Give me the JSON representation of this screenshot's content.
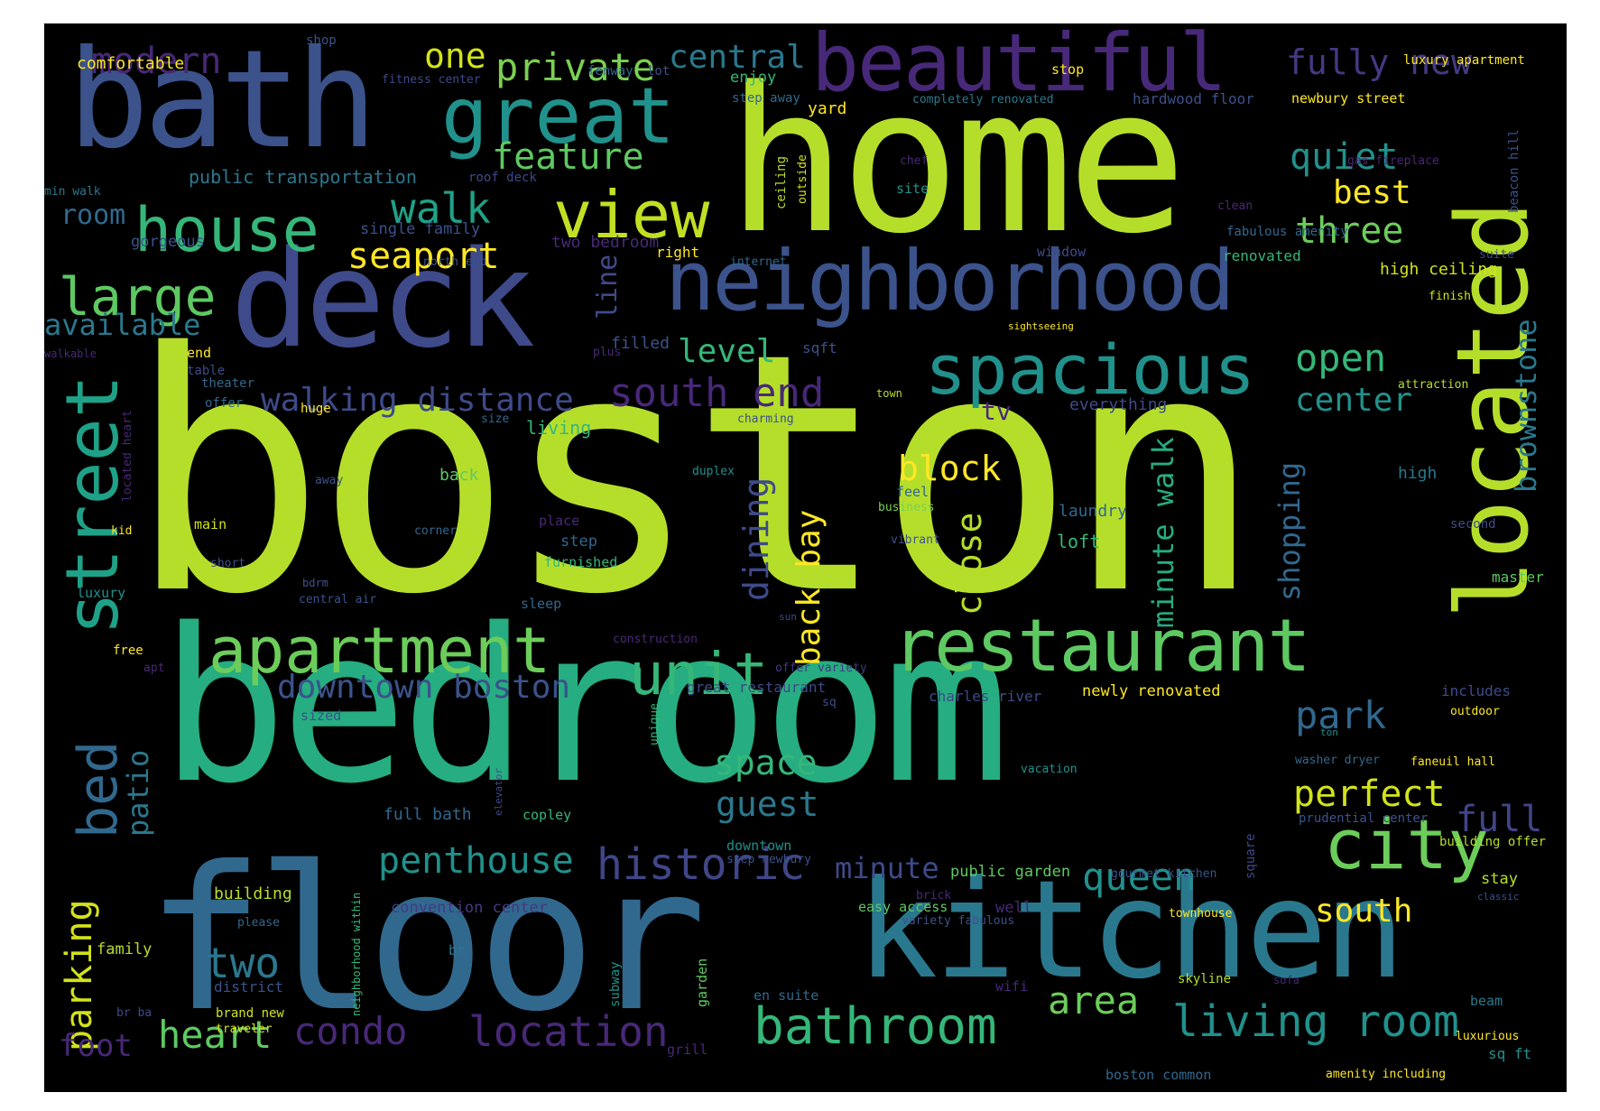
{
  "palette": {
    "lime": "#b5de2b",
    "green": "#5ec962",
    "teal": "#21918c",
    "aqua": "#1fa187",
    "blue": "#3b528b",
    "steel": "#31688e",
    "indigo": "#443983",
    "purple": "#482878",
    "yellow": "#fde725",
    "mint": "#35b779"
  },
  "words": [
    {
      "text": "boston",
      "color": "#b5de2b"
    },
    {
      "text": "bedroom",
      "color": "#26ad81"
    },
    {
      "text": "home",
      "color": "#b5de2b"
    },
    {
      "text": "floor",
      "color": "#31688e"
    },
    {
      "text": "kitchen",
      "color": "#2a788e"
    },
    {
      "text": "bath",
      "color": "#3b528b"
    },
    {
      "text": "deck",
      "color": "#3e4a89"
    },
    {
      "text": "located",
      "color": "#b5de2b"
    },
    {
      "text": "beautiful",
      "color": "#482878"
    },
    {
      "text": "neighborhood",
      "color": "#3b528b"
    },
    {
      "text": "great",
      "color": "#21918c"
    },
    {
      "text": "restaurant",
      "color": "#5ec962"
    },
    {
      "text": "street",
      "color": "#1fa187"
    },
    {
      "text": "spacious",
      "color": "#21918c"
    },
    {
      "text": "apartment",
      "color": "#6ccd5a"
    },
    {
      "text": "view",
      "color": "#c2df23"
    },
    {
      "text": "house",
      "color": "#35b779"
    },
    {
      "text": "unit",
      "color": "#35b779"
    },
    {
      "text": "city",
      "color": "#6ccd5a"
    },
    {
      "text": "bathroom",
      "color": "#35b779"
    },
    {
      "text": "large",
      "color": "#5ec962"
    },
    {
      "text": "bed",
      "color": "#31688e"
    },
    {
      "text": "living room",
      "color": "#21918c"
    },
    {
      "text": "historic",
      "color": "#404688"
    },
    {
      "text": "penthouse",
      "color": "#21918c"
    },
    {
      "text": "condo",
      "color": "#482878"
    },
    {
      "text": "location",
      "color": "#482878"
    },
    {
      "text": "two",
      "color": "#2a788e"
    },
    {
      "text": "heart",
      "color": "#5ec962"
    },
    {
      "text": "queen",
      "color": "#21918c"
    },
    {
      "text": "area",
      "color": "#6ccd5a"
    },
    {
      "text": "south end",
      "color": "#482878"
    },
    {
      "text": "walking distance",
      "color": "#3e4a89"
    },
    {
      "text": "downtown boston",
      "color": "#3b528b"
    },
    {
      "text": "seaport",
      "color": "#fde725"
    },
    {
      "text": "walk",
      "color": "#1fa187"
    },
    {
      "text": "feature",
      "color": "#5ec962"
    },
    {
      "text": "private",
      "color": "#7ad151"
    },
    {
      "text": "central",
      "color": "#2a788e"
    },
    {
      "text": "modern",
      "color": "#482878"
    },
    {
      "text": "one",
      "color": "#d2e21b"
    },
    {
      "text": "fully new",
      "color": "#443983"
    },
    {
      "text": "quiet",
      "color": "#21918c"
    },
    {
      "text": "best",
      "color": "#fde725"
    },
    {
      "text": "three",
      "color": "#6ccd5a"
    },
    {
      "text": "open",
      "color": "#35b779"
    },
    {
      "text": "center",
      "color": "#21918c"
    },
    {
      "text": "park",
      "color": "#31688e"
    },
    {
      "text": "perfect",
      "color": "#d2e21b"
    },
    {
      "text": "full",
      "color": "#414487"
    },
    {
      "text": "south",
      "color": "#fde725"
    },
    {
      "text": "space",
      "color": "#35b779"
    },
    {
      "text": "guest",
      "color": "#2a788e"
    },
    {
      "text": "minute",
      "color": "#3e4a89"
    },
    {
      "text": "block",
      "color": "#fde725"
    },
    {
      "text": "level",
      "color": "#35b779"
    },
    {
      "text": "room",
      "color": "#31688e"
    },
    {
      "text": "available",
      "color": "#2a788e"
    },
    {
      "text": "parking",
      "color": "#d2e21b"
    },
    {
      "text": "patio",
      "color": "#2a788e"
    },
    {
      "text": "foot",
      "color": "#482878"
    },
    {
      "text": "line",
      "color": "#3e4a89"
    },
    {
      "text": "dining",
      "color": "#3e4a89"
    },
    {
      "text": "back bay",
      "color": "#fde725"
    },
    {
      "text": "close",
      "color": "#b5de2b"
    },
    {
      "text": "minute walk",
      "color": "#26ad81"
    },
    {
      "text": "shopping",
      "color": "#31688e"
    },
    {
      "text": "brownstone",
      "color": "#2a788e"
    },
    {
      "text": "tv",
      "color": "#482878"
    },
    {
      "text": "public transportation",
      "color": "#2a788e"
    },
    {
      "text": "comfortable",
      "color": "#fde725"
    },
    {
      "text": "gorgeous",
      "color": "#3b528b"
    },
    {
      "text": "single family",
      "color": "#3b528b"
    },
    {
      "text": "two bedroom",
      "color": "#482878"
    },
    {
      "text": "shop",
      "color": "#3b528b"
    },
    {
      "text": "fitness center",
      "color": "#3e4a89"
    },
    {
      "text": "fenway",
      "color": "#31688e"
    },
    {
      "text": "lot",
      "color": "#3b528b"
    },
    {
      "text": "enjoy",
      "color": "#35b779"
    },
    {
      "text": "step away",
      "color": "#31688e"
    },
    {
      "text": "yard",
      "color": "#fde725"
    },
    {
      "text": "completely renovated",
      "color": "#2a788e"
    },
    {
      "text": "stop",
      "color": "#fde725"
    },
    {
      "text": "hardwood floor",
      "color": "#3b528b"
    },
    {
      "text": "newbury street",
      "color": "#fde725"
    },
    {
      "text": "luxury apartment",
      "color": "#fde725"
    },
    {
      "text": "roof deck",
      "color": "#3e4a89"
    },
    {
      "text": "min walk",
      "color": "#2a788e"
    },
    {
      "text": "chef",
      "color": "#482878"
    },
    {
      "text": "site",
      "color": "#21918c"
    },
    {
      "text": "ceiling",
      "color": "#b5de2b"
    },
    {
      "text": "outside",
      "color": "#d2e21b"
    },
    {
      "text": "gas fireplace",
      "color": "#482878"
    },
    {
      "text": "beacon hill",
      "color": "#3b528b"
    },
    {
      "text": "fabulous amenity",
      "color": "#31688e"
    },
    {
      "text": "clean",
      "color": "#482878"
    },
    {
      "text": "right",
      "color": "#fde725"
    },
    {
      "text": "internet",
      "color": "#31688e"
    },
    {
      "text": "north end",
      "color": "#3b528b"
    },
    {
      "text": "window",
      "color": "#3e4a89"
    },
    {
      "text": "renovated",
      "color": "#35b779"
    },
    {
      "text": "high ceiling",
      "color": "#d2e21b"
    },
    {
      "text": "suite",
      "color": "#3e4a89"
    },
    {
      "text": "finish",
      "color": "#d2e21b"
    },
    {
      "text": "sightseeing",
      "color": "#fde725"
    },
    {
      "text": "walkable",
      "color": "#482878"
    },
    {
      "text": "end",
      "color": "#fde725"
    },
    {
      "text": "table",
      "color": "#3e4a89"
    },
    {
      "text": "theater",
      "color": "#31688e"
    },
    {
      "text": "offer",
      "color": "#31688e"
    },
    {
      "text": "huge",
      "color": "#fde725"
    },
    {
      "text": "located heart",
      "color": "#482878"
    },
    {
      "text": "size",
      "color": "#31688e"
    },
    {
      "text": "living",
      "color": "#35b779"
    },
    {
      "text": "plus",
      "color": "#482878"
    },
    {
      "text": "filled",
      "color": "#3b528b"
    },
    {
      "text": "sqft",
      "color": "#3b528b"
    },
    {
      "text": "town",
      "color": "#b5de2b"
    },
    {
      "text": "charming",
      "color": "#3b528b"
    },
    {
      "text": "everything",
      "color": "#3e4a89"
    },
    {
      "text": "attraction",
      "color": "#b5de2b"
    },
    {
      "text": "high",
      "color": "#2a788e"
    },
    {
      "text": "away",
      "color": "#3b528b"
    },
    {
      "text": "back",
      "color": "#5ec962"
    },
    {
      "text": "duplex",
      "color": "#21918c"
    },
    {
      "text": "feel",
      "color": "#31688e"
    },
    {
      "text": "business",
      "color": "#7ad151"
    },
    {
      "text": "laundry",
      "color": "#31688e"
    },
    {
      "text": "main",
      "color": "#d2e21b"
    },
    {
      "text": "kid",
      "color": "#fde725"
    },
    {
      "text": "corner",
      "color": "#31688e"
    },
    {
      "text": "place",
      "color": "#482878"
    },
    {
      "text": "step",
      "color": "#31688e"
    },
    {
      "text": "furnished",
      "color": "#35b779"
    },
    {
      "text": "vibrant",
      "color": "#3b528b"
    },
    {
      "text": "loft",
      "color": "#35b779"
    },
    {
      "text": "second",
      "color": "#3e4a89"
    },
    {
      "text": "short",
      "color": "#3b528b"
    },
    {
      "text": "luxury",
      "color": "#21918c"
    },
    {
      "text": "bdrm",
      "color": "#3b528b"
    },
    {
      "text": "central air",
      "color": "#3b528b"
    },
    {
      "text": "sleep",
      "color": "#31688e"
    },
    {
      "text": "master",
      "color": "#5ec962"
    },
    {
      "text": "sun",
      "color": "#3e4a89"
    },
    {
      "text": "construction",
      "color": "#482878"
    },
    {
      "text": "free",
      "color": "#fde725"
    },
    {
      "text": "apt",
      "color": "#482878"
    },
    {
      "text": "offer variety",
      "color": "#443983"
    },
    {
      "text": "great restaurant",
      "color": "#3e4a89"
    },
    {
      "text": "charles river",
      "color": "#3e4a89"
    },
    {
      "text": "newly renovated",
      "color": "#fde725"
    },
    {
      "text": "includes",
      "color": "#3e4a89"
    },
    {
      "text": "outdoor",
      "color": "#fde725"
    },
    {
      "text": "sized",
      "color": "#3b528b"
    },
    {
      "text": "sq",
      "color": "#3b528b"
    },
    {
      "text": "unique",
      "color": "#35b779"
    },
    {
      "text": "ton",
      "color": "#21918c"
    },
    {
      "text": "vacation",
      "color": "#21918c"
    },
    {
      "text": "washer dryer",
      "color": "#31688e"
    },
    {
      "text": "faneuil hall",
      "color": "#fde725"
    },
    {
      "text": "elevator",
      "color": "#3e4a89"
    },
    {
      "text": "full bath",
      "color": "#31688e"
    },
    {
      "text": "copley",
      "color": "#35b779"
    },
    {
      "text": "prudential center",
      "color": "#3b528b"
    },
    {
      "text": "square",
      "color": "#3e4a89"
    },
    {
      "text": "building offer",
      "color": "#b5de2b"
    },
    {
      "text": "downtown",
      "color": "#21918c"
    },
    {
      "text": "step newbury",
      "color": "#3b528b"
    },
    {
      "text": "public garden",
      "color": "#5ec962"
    },
    {
      "text": "gourmet kitchen",
      "color": "#3b528b"
    },
    {
      "text": "stay",
      "color": "#b5de2b"
    },
    {
      "text": "building",
      "color": "#b5de2b"
    },
    {
      "text": "neighborhood within",
      "color": "#35b779"
    },
    {
      "text": "convention center",
      "color": "#443983"
    },
    {
      "text": "brick",
      "color": "#482878"
    },
    {
      "text": "easy access",
      "color": "#5ec962"
    },
    {
      "text": "well",
      "color": "#482878"
    },
    {
      "text": "townhouse",
      "color": "#fde725"
    },
    {
      "text": "classic",
      "color": "#3b528b"
    },
    {
      "text": "variety fabulous",
      "color": "#3b528b"
    },
    {
      "text": "please",
      "color": "#31688e"
    },
    {
      "text": "family",
      "color": "#b5de2b"
    },
    {
      "text": "br",
      "color": "#2a788e"
    },
    {
      "text": "garden",
      "color": "#5ec962"
    },
    {
      "text": "subway",
      "color": "#21918c"
    },
    {
      "text": "district",
      "color": "#3b528b"
    },
    {
      "text": "wifi",
      "color": "#482878"
    },
    {
      "text": "skyline",
      "color": "#b5de2b"
    },
    {
      "text": "sofa",
      "color": "#482878"
    },
    {
      "text": "br ba",
      "color": "#3e4a89"
    },
    {
      "text": "brand new",
      "color": "#d2e21b"
    },
    {
      "text": "en suite",
      "color": "#31688e"
    },
    {
      "text": "beam",
      "color": "#2a788e"
    },
    {
      "text": "traveler",
      "color": "#d2e21b"
    },
    {
      "text": "luxurious",
      "color": "#fde725"
    },
    {
      "text": "grill",
      "color": "#482878"
    },
    {
      "text": "sq ft",
      "color": "#21918c"
    },
    {
      "text": "boston common",
      "color": "#31688e"
    },
    {
      "text": "amenity including",
      "color": "#fde725"
    }
  ]
}
